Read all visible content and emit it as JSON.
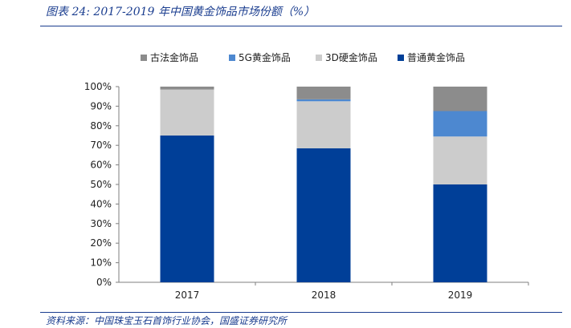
{
  "header": {
    "title": "图表 24:  2017-2019 年中国黄金饰品市场份额（%）"
  },
  "footer": {
    "source": "资料来源：中国珠宝玉石首饰行业协会，国盛证券研究所"
  },
  "colors": {
    "普通黄金饰品": "#003f98",
    "3D硬金饰品": "#cccccc",
    "5G黄金饰品": "#4d88d0",
    "古法金饰品": "#8c8c8c"
  },
  "chart_data": {
    "type": "bar",
    "stacked": true,
    "categories": [
      "2017",
      "2018",
      "2019"
    ],
    "series": [
      {
        "name": "普通黄金饰品",
        "values": [
          75,
          68.5,
          50
        ]
      },
      {
        "name": "3D硬金饰品",
        "values": [
          23.5,
          24,
          24.5
        ]
      },
      {
        "name": "5G黄金饰品",
        "values": [
          0,
          1,
          13
        ]
      },
      {
        "name": "古法金饰品",
        "values": [
          1.5,
          6.5,
          12.5
        ]
      }
    ],
    "legend_order": [
      "古法金饰品",
      "5G黄金饰品",
      "3D硬金饰品",
      "普通黄金饰品"
    ],
    "legend_position": "top",
    "yticks": [
      "0%",
      "10%",
      "20%",
      "30%",
      "40%",
      "50%",
      "60%",
      "70%",
      "80%",
      "90%",
      "100%"
    ],
    "ylim": [
      0,
      100
    ],
    "grid": false,
    "title": "",
    "xlabel": "",
    "ylabel": ""
  }
}
